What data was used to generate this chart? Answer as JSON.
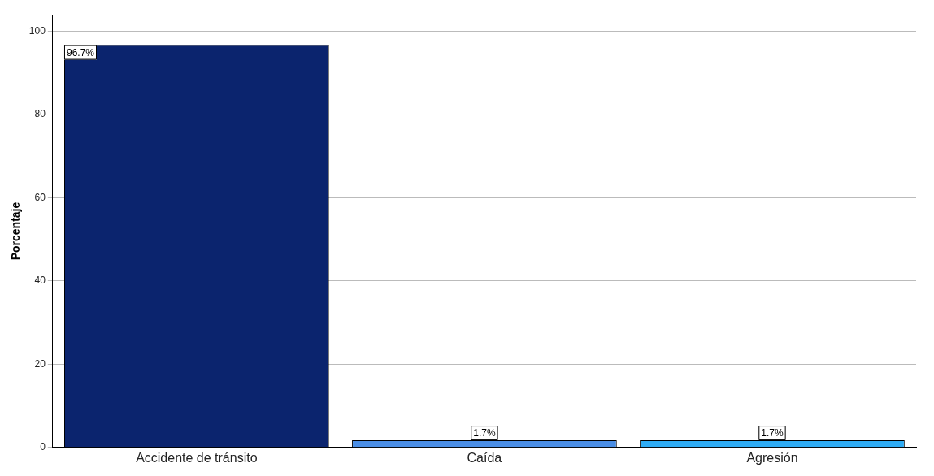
{
  "chart_data": {
    "type": "bar",
    "ylabel": "Porcentaje",
    "categories": [
      "Accidente de tránsito",
      "Caída",
      "Agresión"
    ],
    "values": [
      96.7,
      1.7,
      1.7
    ],
    "colors": [
      "#0b246e",
      "#4a8ee6",
      "#2eacf5"
    ],
    "value_labels": [
      "96.7%",
      "1.7%",
      "1.7%"
    ],
    "ylim": [
      0,
      104
    ],
    "yticks": [
      0,
      20,
      40,
      60,
      80,
      100
    ],
    "grid": "y",
    "legend": false
  }
}
